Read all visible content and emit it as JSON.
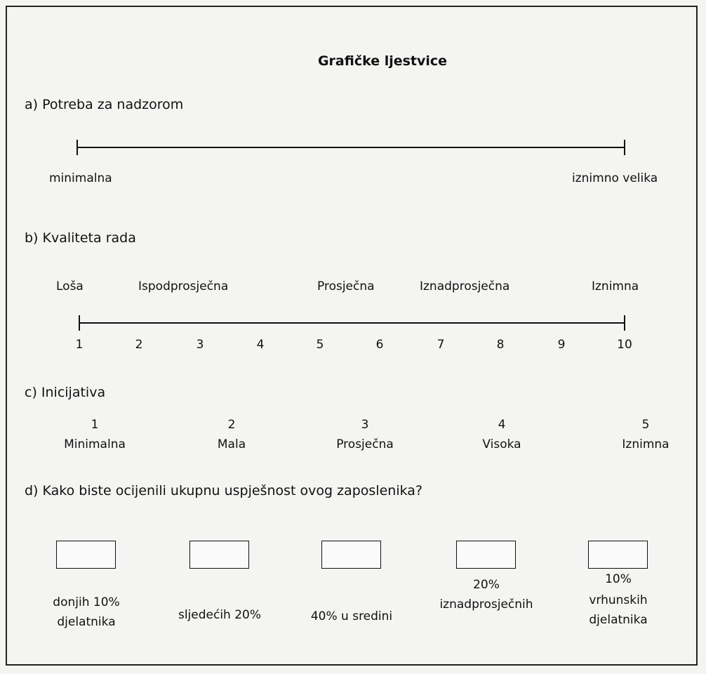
{
  "title": "Grafičke ljestvice",
  "sections": [
    {
      "label": "a) Potreba za nadzorom",
      "left": "minimalna",
      "right": "iznimno velika"
    },
    {
      "label": "b) Kvaliteta rada",
      "anchors": [
        "Loša",
        "Ispodprosječna",
        "Prosječna",
        "Iznadprosječna",
        "Iznimna"
      ],
      "numbers": [
        "1",
        "2",
        "3",
        "4",
        "5",
        "6",
        "7",
        "8",
        "9",
        "10"
      ]
    },
    {
      "label": "c) Inicijativa",
      "items": [
        {
          "number": "1",
          "label": "Minimalna"
        },
        {
          "number": "2",
          "label": "Mala"
        },
        {
          "number": "3",
          "label": "Prosječna"
        },
        {
          "number": "4",
          "label": "Visoka"
        },
        {
          "number": "5",
          "label": "Iznimna"
        }
      ]
    },
    {
      "label": "d) Kako biste ocijenili ukupnu uspješnost ovog zaposlenika?",
      "options": [
        [
          "donjih 10%",
          "djelatnika"
        ],
        [
          "sljedećih 20%"
        ],
        [
          "40% u sredini"
        ],
        [
          "20%",
          "iznadprosječnih"
        ],
        [
          "10%",
          "vrhunskih",
          "djelatnika"
        ]
      ]
    }
  ]
}
